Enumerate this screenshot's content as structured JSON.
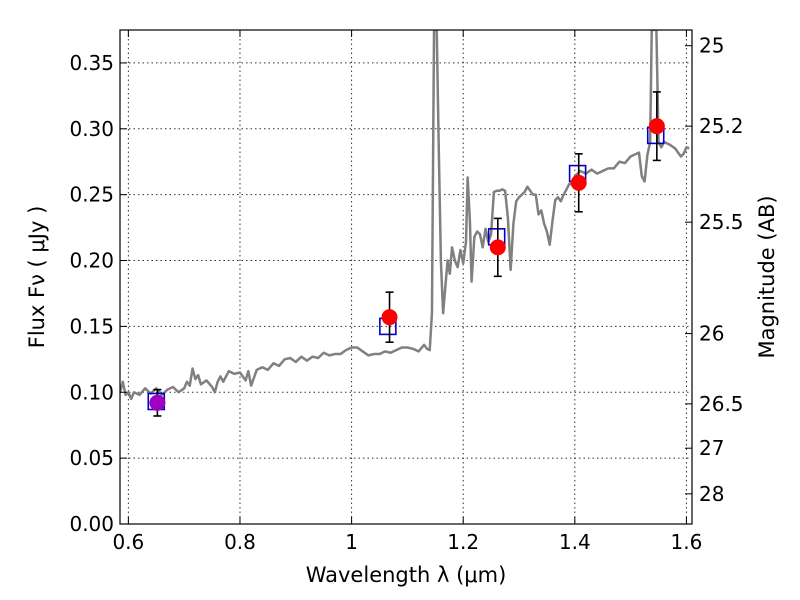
{
  "chart_data": {
    "type": "scatter",
    "xlabel": "Wavelength  λ (μm)",
    "ylabel": "Flux  Fν  ( μJy )",
    "ylabel2": "Magnitude (AB)",
    "xlim": [
      0.585,
      1.61
    ],
    "ylim": [
      0.0,
      0.375
    ],
    "grid": true,
    "x_ticks": [
      {
        "value": 0.6,
        "label": "0.6"
      },
      {
        "value": 0.8,
        "label": "0.8"
      },
      {
        "value": 1.0,
        "label": "1"
      },
      {
        "value": 1.2,
        "label": "1.2"
      },
      {
        "value": 1.4,
        "label": "1.4"
      },
      {
        "value": 1.6,
        "label": "1.6"
      }
    ],
    "y_ticks": [
      {
        "value": 0.0,
        "label": "0.00"
      },
      {
        "value": 0.05,
        "label": "0.05"
      },
      {
        "value": 0.1,
        "label": "0.10"
      },
      {
        "value": 0.15,
        "label": "0.15"
      },
      {
        "value": 0.2,
        "label": "0.20"
      },
      {
        "value": 0.25,
        "label": "0.25"
      },
      {
        "value": 0.3,
        "label": "0.30"
      },
      {
        "value": 0.35,
        "label": "0.35"
      }
    ],
    "magnitude_ticks": [
      {
        "value": 25,
        "label": "25"
      },
      {
        "value": 25.2,
        "label": "25.2"
      },
      {
        "value": 25.5,
        "label": "25.5"
      },
      {
        "value": 26,
        "label": "26"
      },
      {
        "value": 26.5,
        "label": "26.5"
      },
      {
        "value": 27,
        "label": "27"
      },
      {
        "value": 28,
        "label": "28"
      }
    ],
    "series": [
      {
        "role": "model spectrum",
        "style": "line",
        "color": "#808080",
        "points": [
          [
            0.585,
            0.1
          ],
          [
            0.59,
            0.108
          ],
          [
            0.595,
            0.098
          ],
          [
            0.6,
            0.1
          ],
          [
            0.605,
            0.095
          ],
          [
            0.61,
            0.1
          ],
          [
            0.62,
            0.098
          ],
          [
            0.63,
            0.103
          ],
          [
            0.64,
            0.099
          ],
          [
            0.65,
            0.103
          ],
          [
            0.66,
            0.098
          ],
          [
            0.67,
            0.102
          ],
          [
            0.68,
            0.104
          ],
          [
            0.69,
            0.1
          ],
          [
            0.7,
            0.103
          ],
          [
            0.705,
            0.108
          ],
          [
            0.71,
            0.105
          ],
          [
            0.715,
            0.118
          ],
          [
            0.72,
            0.11
          ],
          [
            0.725,
            0.113
          ],
          [
            0.73,
            0.106
          ],
          [
            0.74,
            0.109
          ],
          [
            0.75,
            0.104
          ],
          [
            0.755,
            0.1
          ],
          [
            0.76,
            0.108
          ],
          [
            0.765,
            0.112
          ],
          [
            0.77,
            0.108
          ],
          [
            0.78,
            0.116
          ],
          [
            0.79,
            0.114
          ],
          [
            0.8,
            0.115
          ],
          [
            0.81,
            0.109
          ],
          [
            0.815,
            0.116
          ],
          [
            0.82,
            0.105
          ],
          [
            0.83,
            0.117
          ],
          [
            0.84,
            0.119
          ],
          [
            0.85,
            0.117
          ],
          [
            0.86,
            0.122
          ],
          [
            0.87,
            0.12
          ],
          [
            0.88,
            0.125
          ],
          [
            0.89,
            0.126
          ],
          [
            0.9,
            0.123
          ],
          [
            0.91,
            0.127
          ],
          [
            0.92,
            0.124
          ],
          [
            0.93,
            0.127
          ],
          [
            0.94,
            0.126
          ],
          [
            0.95,
            0.13
          ],
          [
            0.96,
            0.128
          ],
          [
            0.97,
            0.129
          ],
          [
            0.98,
            0.129
          ],
          [
            0.99,
            0.132
          ],
          [
            1.0,
            0.134
          ],
          [
            1.01,
            0.134
          ],
          [
            1.02,
            0.131
          ],
          [
            1.03,
            0.128
          ],
          [
            1.04,
            0.129
          ],
          [
            1.05,
            0.129
          ],
          [
            1.06,
            0.131
          ],
          [
            1.07,
            0.13
          ],
          [
            1.08,
            0.132
          ],
          [
            1.09,
            0.134
          ],
          [
            1.1,
            0.134
          ],
          [
            1.11,
            0.133
          ],
          [
            1.12,
            0.131
          ],
          [
            1.13,
            0.136
          ],
          [
            1.135,
            0.133
          ],
          [
            1.14,
            0.132
          ],
          [
            1.144,
            0.16
          ],
          [
            1.148,
            0.39
          ],
          [
            1.152,
            0.39
          ],
          [
            1.156,
            0.29
          ],
          [
            1.16,
            0.2
          ],
          [
            1.164,
            0.16
          ],
          [
            1.168,
            0.18
          ],
          [
            1.172,
            0.2
          ],
          [
            1.176,
            0.19
          ],
          [
            1.18,
            0.21
          ],
          [
            1.185,
            0.2
          ],
          [
            1.19,
            0.195
          ],
          [
            1.195,
            0.208
          ],
          [
            1.2,
            0.198
          ],
          [
            1.205,
            0.214
          ],
          [
            1.208,
            0.263
          ],
          [
            1.212,
            0.23
          ],
          [
            1.215,
            0.184
          ],
          [
            1.22,
            0.218
          ],
          [
            1.225,
            0.222
          ],
          [
            1.23,
            0.22
          ],
          [
            1.235,
            0.21
          ],
          [
            1.24,
            0.224
          ],
          [
            1.245,
            0.214
          ],
          [
            1.25,
            0.22
          ],
          [
            1.255,
            0.252
          ],
          [
            1.26,
            0.253
          ],
          [
            1.265,
            0.253
          ],
          [
            1.27,
            0.254
          ],
          [
            1.275,
            0.253
          ],
          [
            1.28,
            0.233
          ],
          [
            1.285,
            0.193
          ],
          [
            1.29,
            0.228
          ],
          [
            1.295,
            0.245
          ],
          [
            1.3,
            0.248
          ],
          [
            1.31,
            0.252
          ],
          [
            1.315,
            0.256
          ],
          [
            1.32,
            0.253
          ],
          [
            1.325,
            0.25
          ],
          [
            1.33,
            0.25
          ],
          [
            1.335,
            0.235
          ],
          [
            1.34,
            0.238
          ],
          [
            1.345,
            0.228
          ],
          [
            1.35,
            0.222
          ],
          [
            1.355,
            0.212
          ],
          [
            1.36,
            0.23
          ],
          [
            1.365,
            0.246
          ],
          [
            1.37,
            0.248
          ],
          [
            1.375,
            0.245
          ],
          [
            1.38,
            0.25
          ],
          [
            1.385,
            0.254
          ],
          [
            1.39,
            0.258
          ],
          [
            1.395,
            0.258
          ],
          [
            1.4,
            0.264
          ],
          [
            1.41,
            0.268
          ],
          [
            1.42,
            0.266
          ],
          [
            1.43,
            0.269
          ],
          [
            1.44,
            0.266
          ],
          [
            1.45,
            0.268
          ],
          [
            1.46,
            0.27
          ],
          [
            1.47,
            0.27
          ],
          [
            1.48,
            0.275
          ],
          [
            1.49,
            0.274
          ],
          [
            1.5,
            0.279
          ],
          [
            1.51,
            0.281
          ],
          [
            1.515,
            0.282
          ],
          [
            1.52,
            0.264
          ],
          [
            1.525,
            0.26
          ],
          [
            1.53,
            0.28
          ],
          [
            1.535,
            0.29
          ],
          [
            1.538,
            0.38
          ],
          [
            1.542,
            0.375
          ],
          [
            1.546,
            0.38
          ],
          [
            1.55,
            0.29
          ],
          [
            1.555,
            0.286
          ],
          [
            1.56,
            0.29
          ],
          [
            1.57,
            0.288
          ],
          [
            1.58,
            0.285
          ],
          [
            1.585,
            0.282
          ],
          [
            1.59,
            0.279
          ],
          [
            1.595,
            0.281
          ],
          [
            1.6,
            0.286
          ],
          [
            1.605,
            0.285
          ]
        ]
      },
      {
        "role": "model band flux",
        "style": "open-square",
        "color": "#0000cc",
        "points": [
          [
            0.65,
            0.093
          ],
          [
            1.065,
            0.15
          ],
          [
            1.26,
            0.218
          ],
          [
            1.405,
            0.266
          ],
          [
            1.545,
            0.295
          ]
        ]
      },
      {
        "role": "observed photometry",
        "style": "filled-circle-errorbar",
        "color": "#ff0000",
        "points": [
          {
            "x": 0.652,
            "y": 0.092,
            "err": 0.01,
            "color": "#a000c0"
          },
          {
            "x": 1.068,
            "y": 0.157,
            "err": 0.019
          },
          {
            "x": 1.262,
            "y": 0.21,
            "err": 0.022
          },
          {
            "x": 1.407,
            "y": 0.259,
            "err": 0.022
          },
          {
            "x": 1.547,
            "y": 0.302,
            "err": 0.026
          }
        ]
      }
    ]
  }
}
